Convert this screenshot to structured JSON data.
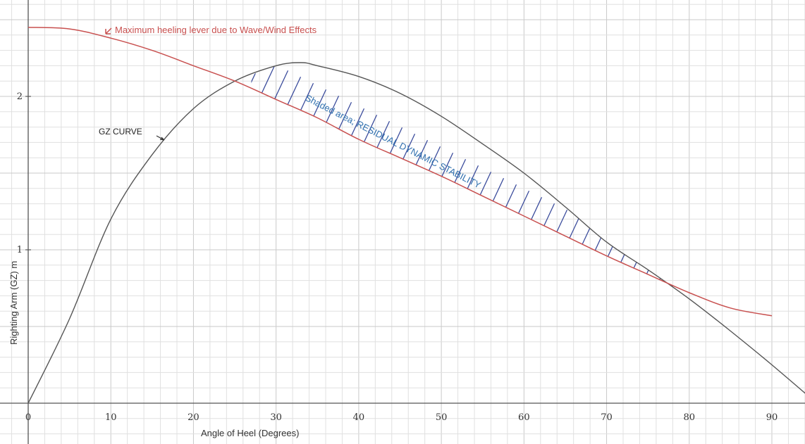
{
  "chart_data": {
    "type": "line",
    "title": "",
    "xlabel": "Angle of Heel (Degrees)",
    "ylabel": "Righting Arm (GZ) m",
    "xlim": [
      0,
      95
    ],
    "ylim": [
      0,
      2.5
    ],
    "x_ticks": [
      0,
      10,
      20,
      30,
      40,
      50,
      60,
      70,
      80,
      90
    ],
    "y_ticks": [
      1,
      2
    ],
    "grid": true,
    "series": [
      {
        "name": "GZ CURVE",
        "color": "#555555",
        "x": [
          0,
          5,
          10,
          15,
          20,
          25,
          30,
          33,
          35,
          40,
          45,
          50,
          55,
          60,
          65,
          70,
          75,
          80,
          85,
          90,
          95
        ],
        "y": [
          0,
          0.55,
          1.2,
          1.62,
          1.92,
          2.1,
          2.2,
          2.22,
          2.2,
          2.13,
          2.02,
          1.87,
          1.69,
          1.5,
          1.28,
          1.05,
          0.87,
          0.68,
          0.47,
          0.25,
          0.02
        ]
      },
      {
        "name": "Maximum heeling lever due to Wave/Wind Effects",
        "color": "#c8504f",
        "x": [
          0,
          5,
          10,
          15,
          20,
          25,
          30,
          35,
          40,
          45,
          50,
          55,
          60,
          65,
          70,
          75,
          80,
          85,
          90
        ],
        "y": [
          2.45,
          2.44,
          2.38,
          2.3,
          2.2,
          2.1,
          1.98,
          1.86,
          1.72,
          1.6,
          1.48,
          1.35,
          1.22,
          1.09,
          0.96,
          0.84,
          0.72,
          0.62,
          0.57
        ]
      }
    ],
    "annotations": {
      "heeling_label": "Maximum heeling lever due to Wave/Wind Effects",
      "gz_label": "GZ CURVE",
      "shaded_label": "Shaded area; RESIDUAL DYNAMIC STABILITY"
    },
    "shaded_region": {
      "from_x": 27,
      "to_x": 79
    }
  }
}
